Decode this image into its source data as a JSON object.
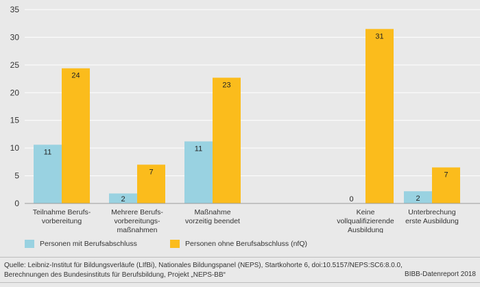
{
  "chart_data": {
    "type": "bar",
    "categories": [
      [
        "Teilnahme Berufs-",
        "vorbereitung"
      ],
      [
        "Mehrere Berufs-",
        "vorbereitungs-",
        "maßnahmen"
      ],
      [
        "Maßnahme",
        "vorzeitig beendet"
      ],
      [
        "Keine",
        "vollqualifizierende",
        "Ausbildung"
      ],
      [
        "Unterbrechung",
        "erste Ausbildung"
      ]
    ],
    "series": [
      {
        "name": "Personen mit Berufsabschluss",
        "color": "#99d2e1",
        "values": [
          10.6,
          1.8,
          11.2,
          0,
          2.2
        ],
        "labels": [
          "11",
          "2",
          "11",
          "0",
          "2"
        ]
      },
      {
        "name": "Personen ohne Berufsabschluss (nfQ)",
        "color": "#fbbc1c",
        "values": [
          24.4,
          7.0,
          22.7,
          31.5,
          6.5
        ],
        "labels": [
          "24",
          "7",
          "23",
          "31",
          "7"
        ]
      }
    ],
    "ylim": [
      0,
      35
    ],
    "yticks": [
      0,
      5,
      10,
      15,
      20,
      25,
      30,
      35
    ],
    "grid": true
  },
  "footer": {
    "source_line1": "Quelle: Leibniz-Institut für Bildungsverläufe (LIfBi), Nationales Bildungspanel (NEPS), Startkohorte 6, doi:10.5157/NEPS:SC6:8.0.0,",
    "source_line2": "Berechnungen des Bundesinstituts für Berufsbildung, Projekt „NEPS-BB“",
    "credit": "BIBB-Datenreport 2018"
  }
}
